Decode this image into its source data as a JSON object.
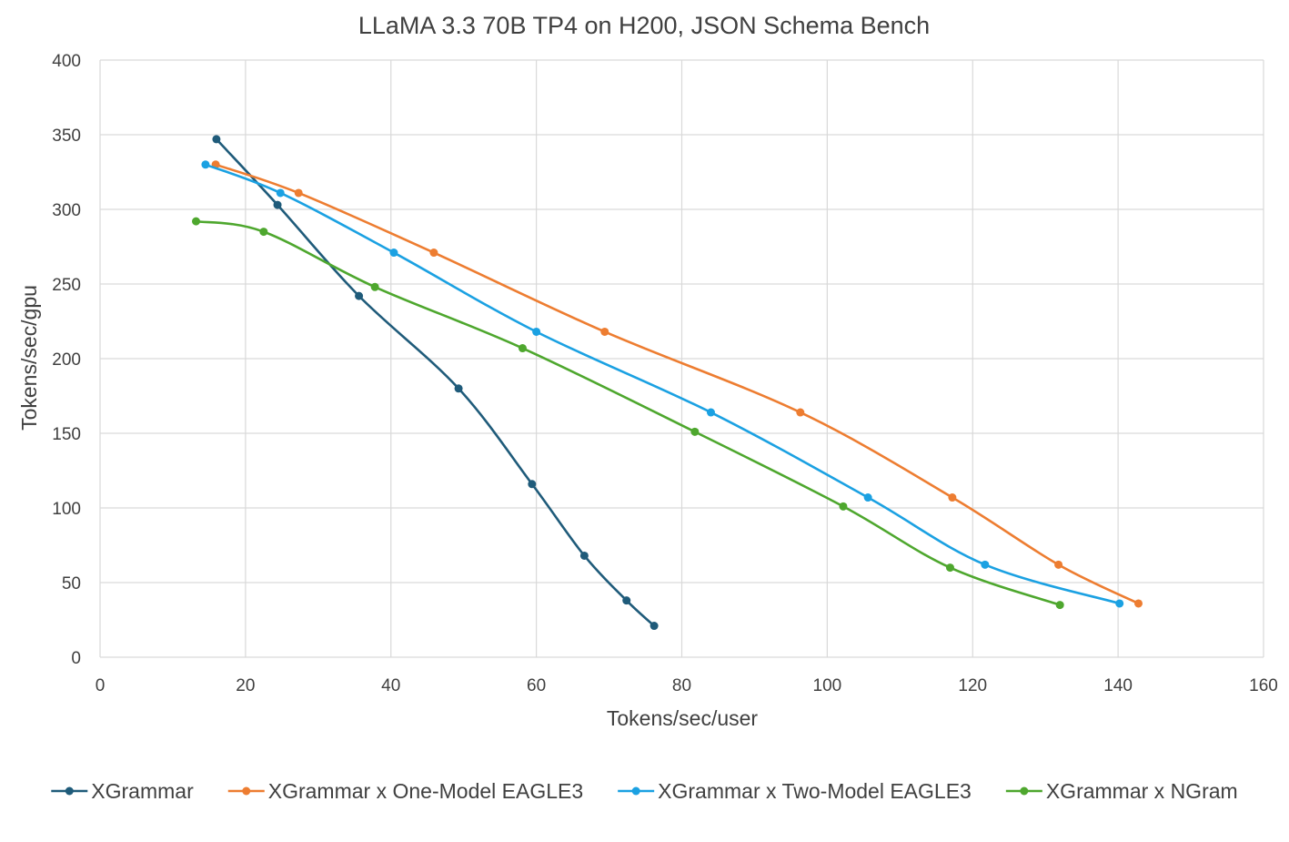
{
  "chart_data": {
    "type": "line",
    "title": "LLaMA 3.3 70B TP4 on H200, JSON Schema Bench",
    "xlabel": "Tokens/sec/user",
    "ylabel": "Tokens/sec/gpu",
    "xlim": [
      0,
      160
    ],
    "ylim": [
      0,
      400
    ],
    "x_ticks": [
      0,
      20,
      40,
      60,
      80,
      100,
      120,
      140,
      160
    ],
    "y_ticks": [
      0,
      50,
      100,
      150,
      200,
      250,
      300,
      350,
      400
    ],
    "grid": true,
    "smoothed": true,
    "legend_position": "bottom",
    "series": [
      {
        "name": "XGrammar",
        "color": "#1f5b7a",
        "x": [
          16.0,
          24.4,
          35.6,
          49.3,
          59.4,
          66.6,
          72.4,
          76.2
        ],
        "y": [
          347,
          303,
          242,
          180,
          116,
          68,
          38,
          21
        ]
      },
      {
        "name": "XGrammar x One-Model EAGLE3",
        "color": "#ed7d31",
        "x": [
          15.9,
          27.3,
          45.9,
          69.4,
          96.3,
          117.2,
          131.8,
          142.8
        ],
        "y": [
          330,
          311,
          271,
          218,
          164,
          107,
          62,
          36
        ]
      },
      {
        "name": "XGrammar x Two-Model EAGLE3",
        "color": "#1ba1e2",
        "x": [
          14.5,
          24.8,
          40.4,
          60.0,
          84.0,
          105.6,
          121.7,
          140.2
        ],
        "y": [
          330,
          311,
          271,
          218,
          164,
          107,
          62,
          36
        ]
      },
      {
        "name": "XGrammar x NGram",
        "color": "#4ea72e",
        "x": [
          13.2,
          22.5,
          37.8,
          58.1,
          81.8,
          102.2,
          116.9,
          132.0
        ],
        "y": [
          292,
          285,
          248,
          207,
          151,
          101,
          60,
          35
        ]
      }
    ]
  }
}
